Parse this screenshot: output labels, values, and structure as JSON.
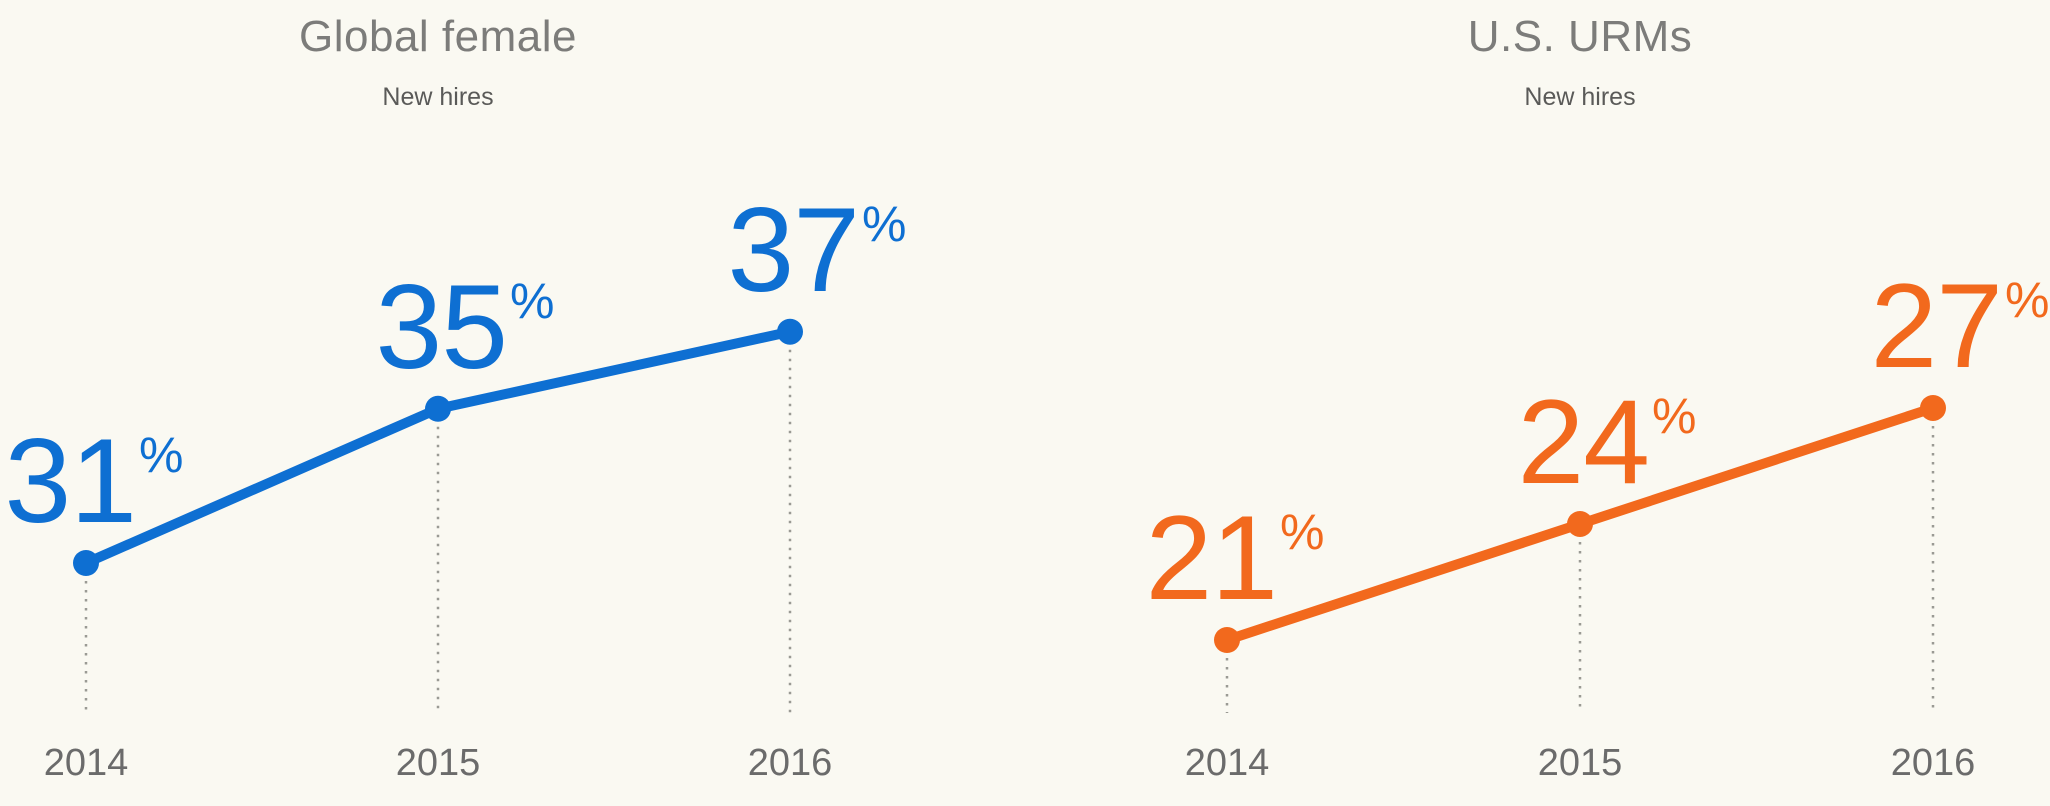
{
  "page": {
    "background_color": "#FAF9F2"
  },
  "chart_data": [
    {
      "type": "line",
      "title": "Global female",
      "subtitle": "New hires",
      "categories": [
        "2014",
        "2015",
        "2016"
      ],
      "values": [
        31,
        35,
        37
      ],
      "value_suffix": "%",
      "line_color": "#0E6FD2",
      "marker_color": "#0E6FD2",
      "label_color": "#0E6FD2",
      "title_color": "#7C7C7A",
      "subtitle_color": "#5A5A58",
      "axis_text_color": "#6B6B6B",
      "connector_color": "#9A9A94",
      "grid": false,
      "legend": "none",
      "annotations": [
        "31%",
        "35%",
        "37%"
      ]
    },
    {
      "type": "line",
      "title": "U.S. URMs",
      "subtitle": "New hires",
      "categories": [
        "2014",
        "2015",
        "2016"
      ],
      "values": [
        21,
        24,
        27
      ],
      "value_suffix": "%",
      "line_color": "#F2691D",
      "marker_color": "#F2691D",
      "label_color": "#F2691D",
      "title_color": "#7C7C7A",
      "subtitle_color": "#5A5A58",
      "axis_text_color": "#6B6B6B",
      "connector_color": "#9A9A94",
      "grid": false,
      "legend": "none",
      "annotations": [
        "21%",
        "24%",
        "27%"
      ]
    }
  ]
}
